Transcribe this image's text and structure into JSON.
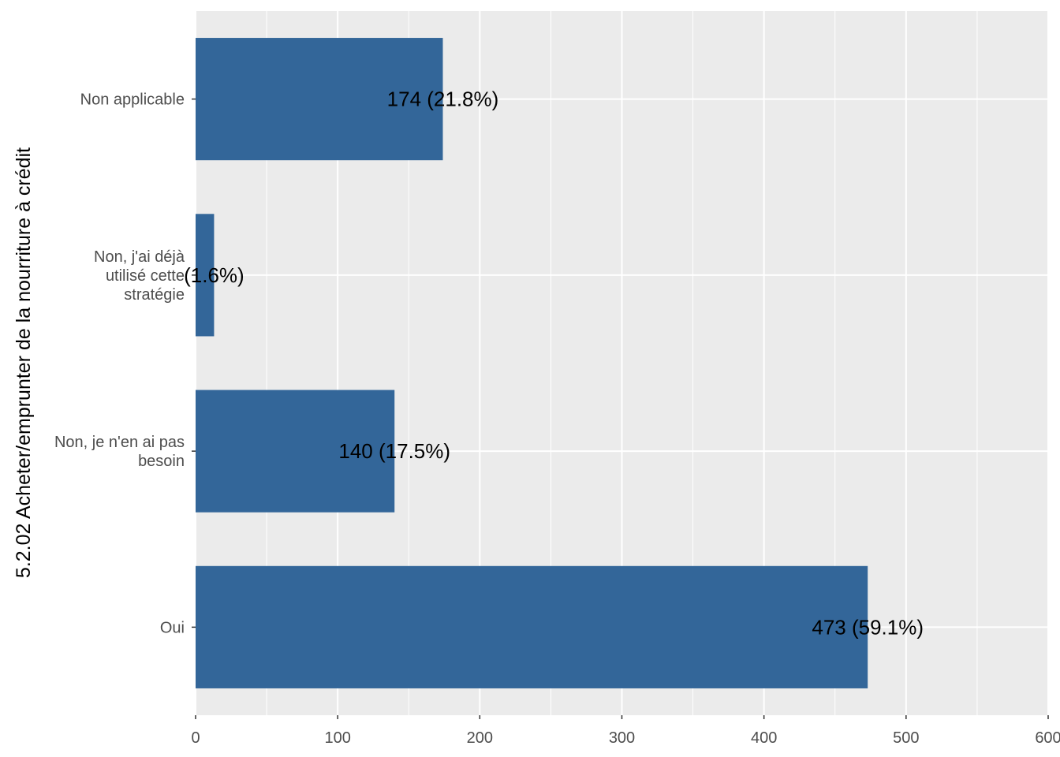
{
  "chart_data": {
    "type": "bar",
    "orientation": "horizontal",
    "ylabel": "5.2.02 Acheter/emprunter de la nourriture à crédit",
    "xlabel": "",
    "categories": [
      [
        "Non applicable"
      ],
      [
        "Non, j'ai déjà",
        "utilisé cette",
        "stratégie"
      ],
      [
        "Non, je n'en ai pas",
        "besoin"
      ],
      [
        "Oui"
      ]
    ],
    "values": [
      174,
      13,
      140,
      473
    ],
    "data_labels": [
      "174 (21.8%)",
      "(1.6%)",
      "140 (17.5%)",
      "473 (59.1%)"
    ],
    "xlim": [
      0,
      600
    ],
    "x_ticks": [
      "0",
      "100",
      "200",
      "300",
      "400",
      "500",
      "600"
    ],
    "grid": true,
    "colors": {
      "bar": "#336699",
      "panel": "#ebebeb",
      "grid": "#ffffff"
    }
  }
}
